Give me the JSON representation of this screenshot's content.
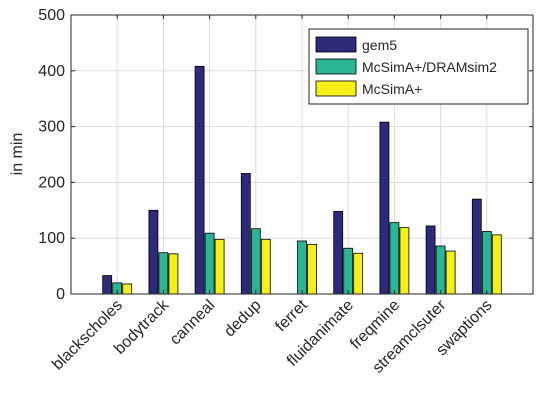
{
  "chart_data": {
    "type": "bar",
    "categories": [
      "blackscholes",
      "bodytrack",
      "canneal",
      "dedup",
      "ferret",
      "fluidanimate",
      "freqmine",
      "streamclsuter",
      "swaptions"
    ],
    "series": [
      {
        "name": "gem5",
        "color": "#2e2a7a",
        "values": [
          33,
          150,
          408,
          216,
          null,
          148,
          308,
          122,
          170
        ]
      },
      {
        "name": "McSimA+/DRAMsim2",
        "color": "#2ab595",
        "values": [
          20,
          74,
          109,
          117,
          95,
          82,
          128,
          86,
          112
        ]
      },
      {
        "name": "McSimA+",
        "color": "#f7ef19",
        "values": [
          18,
          72,
          98,
          98,
          89,
          73,
          119,
          77,
          106
        ]
      }
    ],
    "ylabel": "in min",
    "ylim": [
      0,
      500
    ],
    "yticks": [
      0,
      100,
      200,
      300,
      400,
      500
    ],
    "grid": true,
    "legend": "top-right"
  }
}
